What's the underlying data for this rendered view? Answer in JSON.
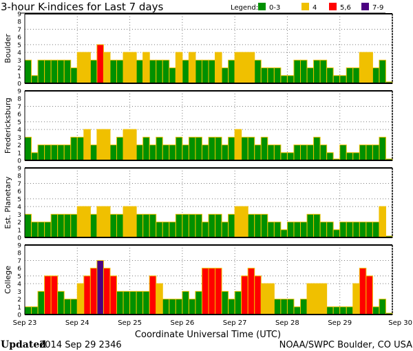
{
  "chart_data": {
    "type": "bar",
    "title": "3-hour K-indices for Last 7 days",
    "legend": {
      "label": "Legend:",
      "entries": [
        {
          "label": "0-3",
          "color": "#009000"
        },
        {
          "label": "4",
          "color": "#f0c000"
        },
        {
          "label": "5,6",
          "color": "#ff0000"
        },
        {
          "label": "7-9",
          "color": "#4b0082"
        }
      ],
      "placement": "top-right"
    },
    "xlabel": "Coordinate Universal Time (UTC)",
    "x_ticks": [
      "Sep 23",
      "Sep 24",
      "Sep 25",
      "Sep 26",
      "Sep 27",
      "Sep 28",
      "Sep 29",
      "Sep 30"
    ],
    "y_ticks": [
      "0",
      "1",
      "2",
      "3",
      "4",
      "5",
      "6",
      "7",
      "8",
      "9"
    ],
    "ylim": [
      0,
      9
    ],
    "interval_hours": 3,
    "gridlines_y": [
      4,
      5,
      7
    ],
    "series": [
      {
        "name": "Boulder",
        "values": [
          3,
          1,
          3,
          3,
          3,
          3,
          3,
          2,
          4,
          4,
          3,
          5,
          4,
          3,
          3,
          4,
          4,
          3,
          4,
          3,
          3,
          3,
          2,
          4,
          3,
          4,
          3,
          3,
          3,
          4,
          2,
          3,
          4,
          4,
          4,
          3,
          2,
          2,
          2,
          1,
          1,
          3,
          3,
          2,
          3,
          3,
          2,
          1,
          1,
          2,
          2,
          4,
          4,
          2,
          3,
          0
        ]
      },
      {
        "name": "Fredericksburg",
        "values": [
          3,
          1,
          2,
          2,
          2,
          2,
          2,
          3,
          3,
          4,
          2,
          4,
          4,
          2,
          3,
          4,
          4,
          2,
          3,
          2,
          3,
          2,
          2,
          3,
          2,
          3,
          3,
          2,
          3,
          3,
          2,
          3,
          4,
          3,
          3,
          2,
          3,
          2,
          2,
          1,
          1,
          2,
          2,
          2,
          3,
          2,
          1,
          0,
          2,
          1,
          1,
          2,
          2,
          2,
          3,
          0
        ]
      },
      {
        "name": "Est. Planetary",
        "values": [
          3,
          2,
          2,
          2,
          3,
          3,
          3,
          3,
          4,
          4,
          3,
          4,
          4,
          3,
          3,
          4,
          4,
          3,
          3,
          3,
          2,
          2,
          2,
          3,
          3,
          3,
          3,
          2,
          3,
          3,
          2,
          3,
          4,
          4,
          3,
          3,
          3,
          2,
          2,
          1,
          2,
          2,
          2,
          3,
          3,
          2,
          2,
          1,
          2,
          2,
          2,
          2,
          2,
          2,
          4,
          0
        ]
      },
      {
        "name": "College",
        "values": [
          1,
          1,
          3,
          5,
          5,
          3,
          2,
          2,
          4,
          5,
          6,
          7,
          6,
          5,
          3,
          3,
          3,
          3,
          3,
          5,
          4,
          2,
          2,
          2,
          3,
          2,
          3,
          6,
          6,
          6,
          3,
          2,
          3,
          5,
          6,
          5,
          4,
          4,
          2,
          2,
          2,
          1,
          2,
          4,
          4,
          4,
          1,
          1,
          1,
          1,
          4,
          6,
          5,
          1,
          2,
          0
        ]
      }
    ]
  },
  "footer": {
    "updated_label": "Updated",
    "updated_value": "2014 Sep 29 2346",
    "credit": "NOAA/SWPC Boulder, CO USA"
  }
}
